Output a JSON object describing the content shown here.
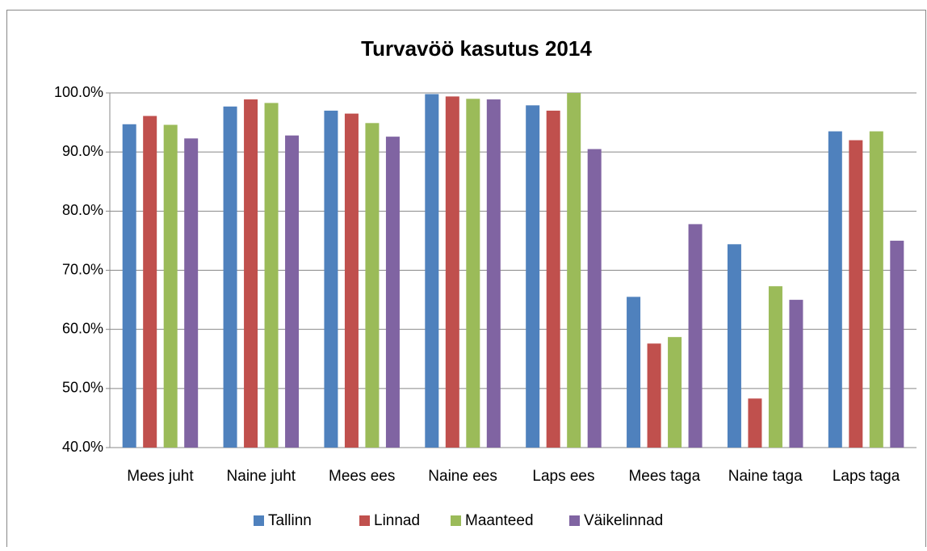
{
  "chart_data": {
    "type": "bar",
    "title": "Turvavöö kasutus 2014",
    "categories": [
      "Mees juht",
      "Naine juht",
      "Mees ees",
      "Naine ees",
      "Laps ees",
      "Mees taga",
      "Naine taga",
      "Laps taga"
    ],
    "series": [
      {
        "name": "Tallinn",
        "color": "#4f81bd",
        "values": [
          94.7,
          97.7,
          97.0,
          99.8,
          97.9,
          65.5,
          74.4,
          93.5
        ]
      },
      {
        "name": "Linnad",
        "color": "#c0504d",
        "values": [
          96.1,
          98.9,
          96.5,
          99.4,
          97.0,
          57.6,
          48.3,
          92.0
        ]
      },
      {
        "name": "Maanteed",
        "color": "#9bbb59",
        "values": [
          94.6,
          98.3,
          94.9,
          99.0,
          100.0,
          58.7,
          67.3,
          93.5
        ]
      },
      {
        "name": "Väikelinnad",
        "color": "#8064a2",
        "values": [
          92.3,
          92.8,
          92.6,
          98.9,
          90.5,
          77.8,
          65.0,
          75.0
        ]
      }
    ],
    "ylim": [
      40,
      100
    ],
    "yticks": [
      {
        "value": 40,
        "label": "40.0%"
      },
      {
        "value": 50,
        "label": "50.0%"
      },
      {
        "value": 60,
        "label": "60.0%"
      },
      {
        "value": 70,
        "label": "70.0%"
      },
      {
        "value": 80,
        "label": "80.0%"
      },
      {
        "value": 90,
        "label": "90.0%"
      },
      {
        "value": 100,
        "label": "100.0%"
      }
    ],
    "grid": true,
    "legend": "bottom"
  }
}
